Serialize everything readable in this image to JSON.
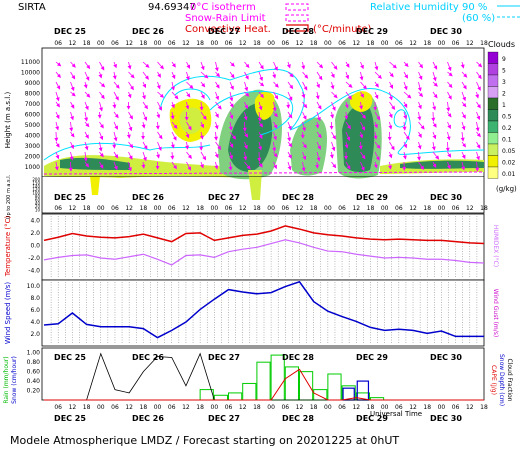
{
  "header": {
    "site": "SIRTA",
    "coord": "94.69347",
    "isotherm": "0°C isotherm",
    "snow_rain": "Snow-Rain Limit",
    "convective": "Convective Heat.",
    "convective_unit": "(°C/minute)",
    "rh_label": "Relative Humidity",
    "rh_90": "90 %",
    "rh_60": "(60 %)"
  },
  "days": [
    "DEC 25",
    "DEC 26",
    "DEC 27",
    "DEC 28",
    "DEC 29",
    "DEC 30"
  ],
  "hours": [
    "06",
    "12",
    "18",
    "00"
  ],
  "footer": {
    "title": "Modele Atmospherique LMDZ / Forecast starting on 20201225 at 0hUT",
    "utime": "Universal Time"
  },
  "colors": {
    "magenta": "#ff00ff",
    "red": "#e00000",
    "blue": "#0000cc",
    "cyan": "#00e0ff",
    "green": "#00cc00",
    "violet": "#cc66ff"
  },
  "chart_data": [
    {
      "type": "heatmap",
      "title": "Clouds",
      "ylabel": "Height (m a.s.l.)",
      "ylabel_low": "Up to 200 m a.s.l.",
      "yticks_upper": [
        "11000",
        "10000",
        "9000",
        "8000",
        "7000",
        "6000",
        "5000",
        "4000",
        "3000",
        "2000",
        "1000"
      ],
      "yticks_lower": [
        "200",
        "150",
        "140",
        "120",
        "100",
        "80",
        "60",
        "40",
        "20",
        "10"
      ],
      "legend": {
        "title": "Clouds",
        "unit": "(g/kg)",
        "levels": [
          "9",
          "5",
          "3",
          "2",
          "1",
          "0.5",
          "0.2",
          "0.1",
          "0.05",
          "0.02",
          "0.01"
        ]
      }
    },
    {
      "type": "line",
      "ylabel": "Temperature (°C)",
      "ylabel_right": "HUMIDEX (°C)",
      "yticks": [
        "4.0",
        "2.0",
        "0.0",
        "-2.0",
        "-4.0"
      ],
      "ylim": [
        -5.5,
        5
      ],
      "x_hours": [
        0,
        6,
        12,
        18,
        24,
        30,
        36,
        42,
        48,
        54,
        60,
        66,
        72,
        78,
        84,
        90,
        96,
        102,
        108,
        114,
        120,
        126,
        132,
        138,
        144,
        150,
        156,
        162,
        168,
        174,
        180,
        186
      ],
      "series": [
        {
          "name": "temperature",
          "values": [
            0.8,
            1.3,
            1.9,
            1.5,
            1.3,
            1.2,
            1.4,
            1.8,
            1.2,
            0.6,
            1.9,
            2.0,
            0.8,
            1.2,
            1.6,
            1.8,
            2.3,
            3.1,
            2.6,
            2.0,
            1.7,
            1.5,
            1.2,
            1.0,
            0.9,
            1.0,
            0.9,
            0.8,
            0.8,
            0.6,
            0.4,
            0.3
          ]
        },
        {
          "name": "humidex",
          "values": [
            -2.3,
            -1.9,
            -1.6,
            -1.5,
            -2.0,
            -2.2,
            -1.8,
            -1.4,
            -2.2,
            -3.1,
            -1.6,
            -1.5,
            -1.9,
            -1.0,
            -0.6,
            -0.3,
            0.3,
            0.9,
            0.4,
            -0.3,
            -0.9,
            -1.0,
            -1.4,
            -1.7,
            -2.0,
            -1.9,
            -2.0,
            -2.2,
            -2.2,
            -2.4,
            -2.7,
            -2.8
          ]
        }
      ]
    },
    {
      "type": "line",
      "ylabel": "Wind Speed (m/s)",
      "ylabel_right": "Wind Gust (m/s)",
      "yticks": [
        "10.0",
        "8.0",
        "6.0",
        "4.0",
        "2.0"
      ],
      "ylim": [
        0,
        11
      ],
      "x_hours": [
        0,
        6,
        12,
        18,
        24,
        30,
        36,
        42,
        48,
        54,
        60,
        66,
        72,
        78,
        84,
        90,
        96,
        102,
        108,
        114,
        120,
        126,
        132,
        138,
        144,
        150,
        156,
        162,
        168,
        174,
        180,
        186
      ],
      "series": [
        {
          "name": "wind_speed",
          "values": [
            3.5,
            3.7,
            5.5,
            3.6,
            3.2,
            3.2,
            3.2,
            2.9,
            1.4,
            2.6,
            4.0,
            6.1,
            7.8,
            9.4,
            9.0,
            8.7,
            8.9,
            9.9,
            10.7,
            7.4,
            5.8,
            4.9,
            4.1,
            3.1,
            2.6,
            2.8,
            2.6,
            2.1,
            2.5,
            1.6,
            1.6,
            1.6
          ]
        }
      ]
    },
    {
      "type": "bar",
      "ylabel": "Rain (mm/hour)",
      "ylabel2": "Snow (cm/hour)",
      "ylabel_right": "CAPE (J/g)",
      "ylabel_right2": "Snow Depth (cm)",
      "ylabel_right3": "Cloud Fraction",
      "yticks": [
        "1.00",
        "0.80",
        "0.60",
        "0.40",
        "0.20"
      ],
      "ylim": [
        0,
        1.1
      ],
      "series": [
        {
          "name": "rain",
          "values": [
            0,
            0,
            0,
            0,
            0,
            0,
            0,
            0,
            0,
            0,
            0,
            0.22,
            0.1,
            0.15,
            0.35,
            0.8,
            0.95,
            0.7,
            0.6,
            0.22,
            0.55,
            0.3,
            0.15,
            0.05,
            0,
            0,
            0,
            0,
            0,
            0,
            0,
            0
          ]
        },
        {
          "name": "snow",
          "values": [
            0,
            0,
            0,
            0,
            0,
            0,
            0,
            0,
            0,
            0,
            0,
            0,
            0,
            0,
            0,
            0,
            0,
            0,
            0,
            0,
            0,
            0.25,
            0.4,
            0,
            0,
            0,
            0,
            0,
            0,
            0,
            0,
            0
          ]
        },
        {
          "name": "cape",
          "values": [
            0,
            0,
            0,
            0,
            0,
            0,
            0,
            0,
            0,
            0,
            0,
            0,
            0,
            0,
            0,
            0,
            0,
            0.45,
            0.65,
            0.15,
            0,
            0,
            0.05,
            0,
            0,
            0,
            0,
            0,
            0,
            0,
            0,
            0
          ]
        },
        {
          "name": "cloud_fraction",
          "values": [
            0,
            0,
            0,
            0,
            0.98,
            0.22,
            0.15,
            0.6,
            0.92,
            0.9,
            0.3,
            0.98,
            0,
            0,
            0,
            0,
            0,
            0,
            0,
            0,
            0,
            0,
            0,
            0,
            0,
            0,
            0,
            0,
            0,
            0,
            0,
            0
          ]
        }
      ]
    }
  ]
}
